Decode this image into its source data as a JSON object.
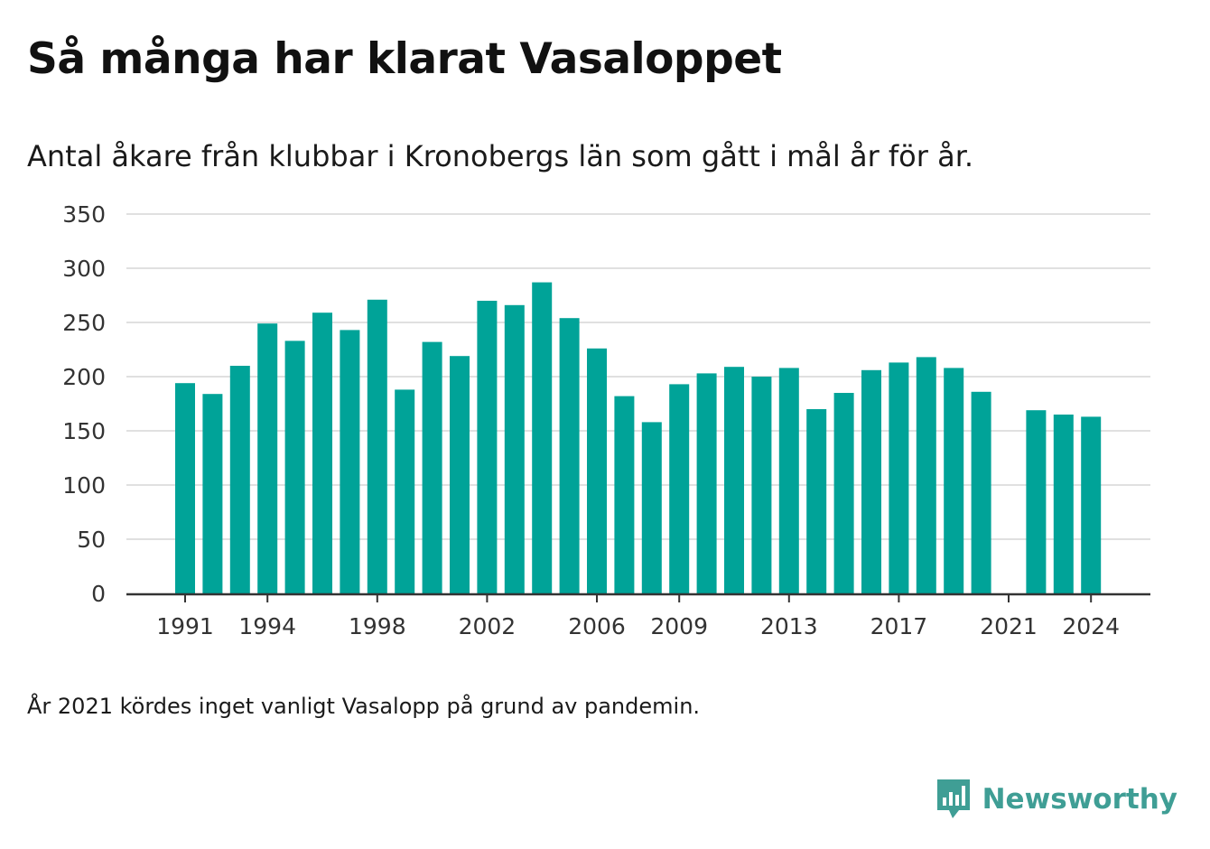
{
  "title": "Så många har klarat Vasaloppet",
  "subtitle": "Antal åkare från klubbar i Kronobergs län som gått i mål år för år.",
  "note": "År 2021 kördes inget vanligt Vasalopp på grund av pandemin.",
  "brand": {
    "name": "Newsworthy",
    "icon": "bar-chart-speech-bubble-icon"
  },
  "colors": {
    "bar": "#00a398",
    "grid": "#e0e0e0",
    "axis": "#333333",
    "brand": "#3f9e95"
  },
  "chart_data": {
    "type": "bar",
    "title": "Så många har klarat Vasaloppet",
    "xlabel": "",
    "ylabel": "",
    "ylim": [
      0,
      350
    ],
    "yticks": [
      0,
      50,
      100,
      150,
      200,
      250,
      300,
      350
    ],
    "xticks": [
      "1991",
      "1994",
      "1998",
      "2002",
      "2006",
      "2009",
      "2013",
      "2017",
      "2021",
      "2024"
    ],
    "grid": true,
    "categories": [
      "1991",
      "1992",
      "1993",
      "1994",
      "1995",
      "1996",
      "1997",
      "1998",
      "1999",
      "2000",
      "2001",
      "2002",
      "2003",
      "2004",
      "2005",
      "2006",
      "2007",
      "2008",
      "2009",
      "2010",
      "2011",
      "2012",
      "2013",
      "2014",
      "2015",
      "2016",
      "2017",
      "2018",
      "2019",
      "2020",
      "2021",
      "2022",
      "2023",
      "2024"
    ],
    "values": [
      194,
      184,
      210,
      249,
      233,
      259,
      243,
      271,
      188,
      232,
      219,
      270,
      266,
      287,
      254,
      226,
      182,
      158,
      193,
      203,
      209,
      200,
      208,
      170,
      185,
      206,
      213,
      218,
      208,
      186,
      null,
      169,
      165,
      163
    ]
  }
}
